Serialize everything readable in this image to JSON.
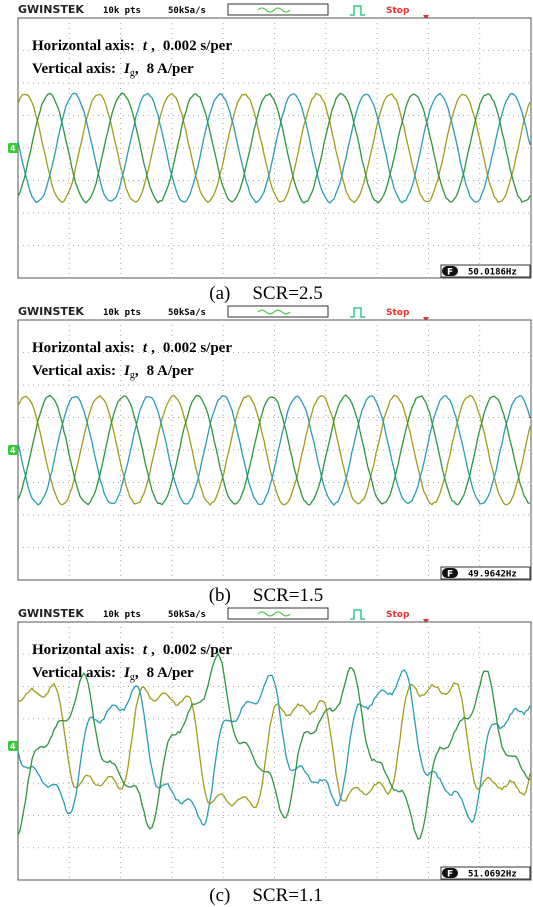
{
  "panels": [
    {
      "header": {
        "brand": "GWINSTEK",
        "points": "10k pts",
        "rate": "50kSa/s",
        "status": "Stop"
      },
      "annotation": {
        "horizontal_label": "Horizontal axis:",
        "horizontal_var": "t",
        "separator": ",",
        "horizontal_scale": "0.002 s/per",
        "vertical_label": "Vertical axis:",
        "vertical_var": "I",
        "vertical_sub": "g",
        "vertical_scale": "8 A/per"
      },
      "channel": "4",
      "frequency_icon": "F",
      "frequency": "50.0186Hz",
      "caption_letter": "(a)",
      "caption": "SCR=2.5"
    },
    {
      "header": {
        "brand": "GWINSTEK",
        "points": "10k pts",
        "rate": "50kSa/s",
        "status": "Stop"
      },
      "annotation": {
        "horizontal_label": "Horizontal axis:",
        "horizontal_var": "t",
        "separator": ",",
        "horizontal_scale": "0.002 s/per",
        "vertical_label": "Vertical axis:",
        "vertical_var": "I",
        "vertical_sub": "g",
        "vertical_scale": "8 A/per"
      },
      "channel": "4",
      "frequency_icon": "F",
      "frequency": "49.9642Hz",
      "caption_letter": "(b)",
      "caption": "SCR=1.5"
    },
    {
      "header": {
        "brand": "GWINSTEK",
        "points": "10k pts",
        "rate": "50kSa/s",
        "status": "Stop"
      },
      "annotation": {
        "horizontal_label": "Horizontal axis:",
        "horizontal_var": "t",
        "separator": ",",
        "horizontal_scale": "0.002 s/per",
        "vertical_label": "Vertical axis:",
        "vertical_var": "I",
        "vertical_sub": "g",
        "vertical_scale": "8 A/per"
      },
      "channel": "4",
      "frequency_icon": "F",
      "frequency": "51.0692Hz",
      "caption_letter": "(c)",
      "caption": "SCR=1.1"
    }
  ]
}
